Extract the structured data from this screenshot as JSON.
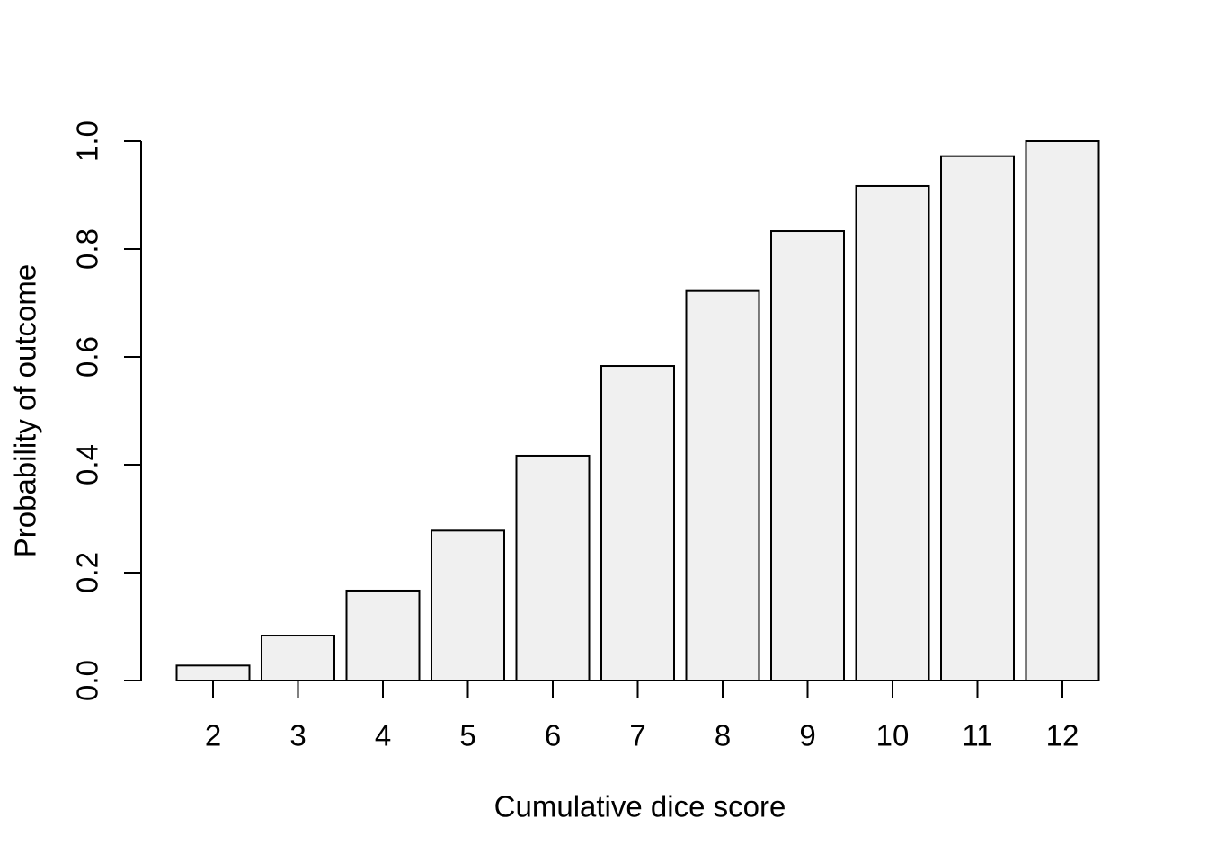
{
  "figure": {
    "background": "#ffffff",
    "xlabel": "Cumulative dice score",
    "ylabel": "Probability of outcome"
  },
  "chart_data": {
    "type": "bar",
    "title": "",
    "xlabel": "Cumulative dice score",
    "ylabel": "Probability of outcome",
    "categories": [
      "2",
      "3",
      "4",
      "5",
      "6",
      "7",
      "8",
      "9",
      "10",
      "11",
      "12"
    ],
    "values": [
      0.0278,
      0.0833,
      0.1667,
      0.2778,
      0.4167,
      0.5833,
      0.7222,
      0.8333,
      0.9167,
      0.9722,
      1.0
    ],
    "ylim": [
      0.0,
      1.0
    ],
    "yticks": [
      0.0,
      0.2,
      0.4,
      0.6,
      0.8,
      1.0
    ],
    "ytick_labels": [
      "0.0",
      "0.2",
      "0.4",
      "0.6",
      "0.8",
      "1.0"
    ],
    "grid": false,
    "legend_position": "none",
    "bar_fill": "#F0F0F0",
    "bar_stroke": "#000000",
    "axis_color": "#000000",
    "text_color": "#000000"
  }
}
